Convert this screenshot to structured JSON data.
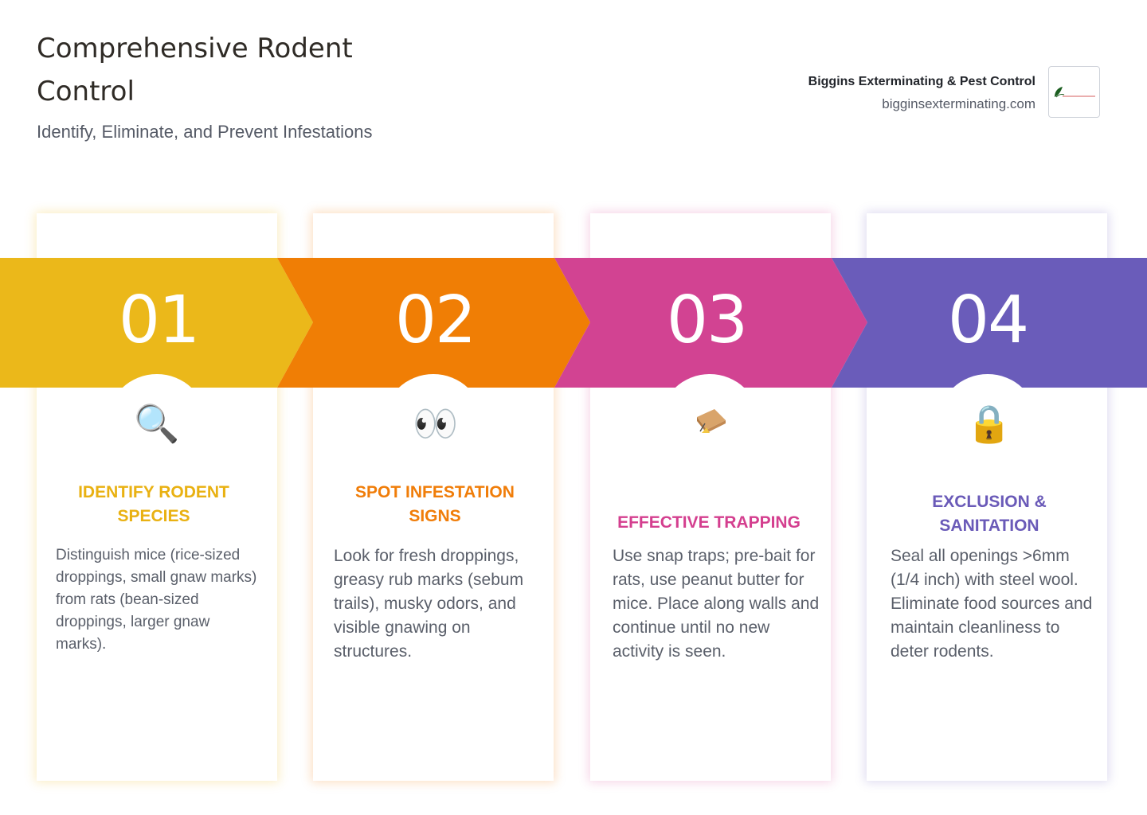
{
  "header": {
    "title": "Comprehensive Rodent Control",
    "subtitle": "Identify, Eliminate, and Prevent Infestations"
  },
  "brand": {
    "name": "Biggins Exterminating & Pest Control",
    "url": "bigginsexterminating.com",
    "logo_text": "Biggins"
  },
  "steps": [
    {
      "number": "01",
      "icon": "magnifying-glass-icon",
      "icon_glyph": "🔍",
      "heading": "IDENTIFY RODENT SPECIES",
      "body": "Distinguish mice (rice-sized droppings, small gnaw marks) from rats (bean-sized droppings, larger gnaw marks).",
      "color": "#EBB81A"
    },
    {
      "number": "02",
      "icon": "eyes-icon",
      "icon_glyph": "👀",
      "heading": "SPOT INFESTATION SIGNS",
      "body": "Look for fresh droppings, greasy rub marks (sebum trails), musky odors, and visible gnawing on structures.",
      "color": "#F07E05"
    },
    {
      "number": "03",
      "icon": "mouse-trap-icon",
      "icon_glyph": "🪤",
      "heading": "EFFECTIVE TRAPPING",
      "body": "Use snap traps; pre-bait for rats, use peanut butter for mice. Place along walls and continue until no new activity is seen.",
      "color": "#D24392"
    },
    {
      "number": "04",
      "icon": "padlock-icon",
      "icon_glyph": "🔒",
      "heading": "EXCLUSION & SANITATION",
      "body": "Seal all openings >6mm (1/4 inch) with steel wool. Eliminate food sources and maintain cleanliness to deter rodents.",
      "color": "#6A5CBA"
    }
  ]
}
